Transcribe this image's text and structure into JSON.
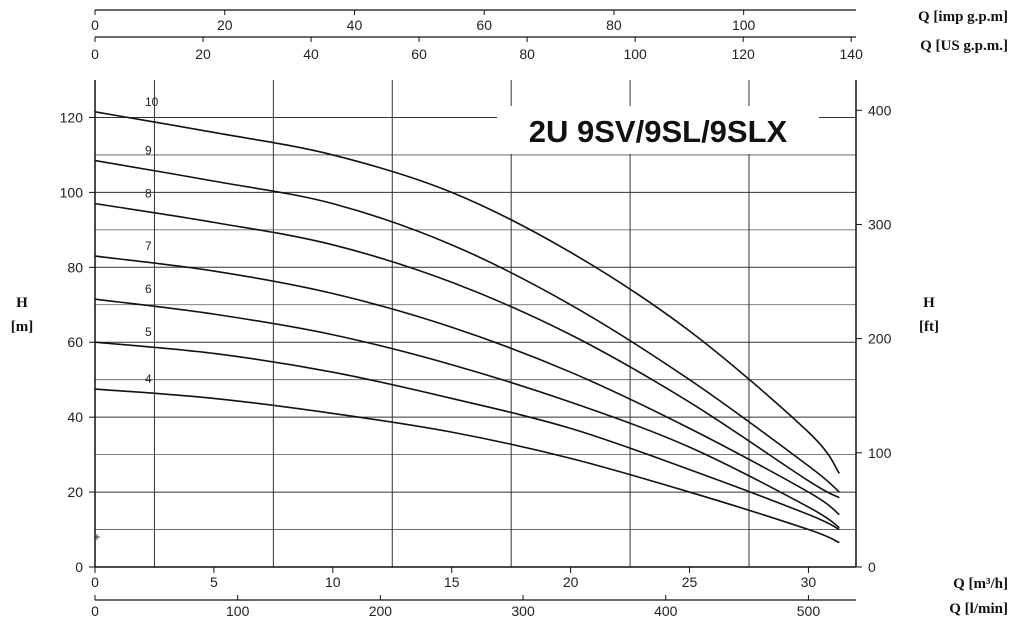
{
  "chart_data": {
    "type": "line",
    "title": "2U 9SV/9SL/9SLX",
    "xlabel": "Q [m³/h]",
    "ylabel": "H [m]",
    "xlim": [
      0,
      32
    ],
    "ylim": [
      0,
      130
    ],
    "x_ticks": [
      0,
      5,
      10,
      15,
      20,
      25,
      30
    ],
    "y_ticks": [
      0,
      20,
      40,
      60,
      80,
      100,
      120
    ],
    "y_minor_grid": [
      10,
      30,
      50,
      70,
      90,
      110
    ],
    "x_grid": [
      2.5,
      7.5,
      12.5,
      17.5,
      22.5,
      27.5
    ],
    "grid": true,
    "secondary_axes": {
      "right": {
        "label_top": "H",
        "label_bottom": "[ft]",
        "ticks": [
          0,
          100,
          200,
          300,
          400
        ]
      },
      "bottom2": {
        "label": "Q [l/min]",
        "ticks": [
          0,
          100,
          200,
          300,
          400,
          500
        ]
      },
      "top1": {
        "label": "Q [imp g.p.m]",
        "ticks": [
          0,
          20,
          40,
          60,
          80,
          100
        ]
      },
      "top2": {
        "label": "Q [US g.p.m.]",
        "ticks": [
          0,
          20,
          40,
          60,
          80,
          100,
          120,
          140
        ]
      }
    },
    "left_label": {
      "top": "H",
      "bottom": "[m]"
    },
    "series": [
      {
        "name": "4",
        "x": [
          0,
          5,
          10,
          15,
          20,
          25,
          30,
          31.3
        ],
        "y": [
          47.5,
          45,
          41,
          36,
          29,
          20,
          10,
          6.5
        ]
      },
      {
        "name": "5",
        "x": [
          0,
          5,
          10,
          15,
          20,
          25,
          30,
          31.3
        ],
        "y": [
          60,
          57,
          52,
          45,
          37,
          26,
          14,
          10
        ]
      },
      {
        "name": "6",
        "x": [
          0,
          5,
          10,
          15,
          20,
          25,
          30,
          31.3
        ],
        "y": [
          71.5,
          67.5,
          62,
          54,
          44,
          32,
          16,
          10.5
        ]
      },
      {
        "name": "7",
        "x": [
          0,
          5,
          10,
          15,
          20,
          25,
          30,
          31.3
        ],
        "y": [
          83,
          79,
          73,
          64,
          52,
          37,
          20,
          14
        ]
      },
      {
        "name": "8",
        "x": [
          0,
          5,
          10,
          15,
          20,
          25,
          30,
          31.3
        ],
        "y": [
          97,
          92,
          86,
          76,
          62,
          44,
          23,
          18.5
        ]
      },
      {
        "name": "9",
        "x": [
          0,
          5,
          10,
          15,
          20,
          25,
          30,
          31.3
        ],
        "y": [
          108.5,
          103,
          97,
          86,
          70,
          50,
          27,
          20
        ]
      },
      {
        "name": "10",
        "x": [
          0,
          5,
          10,
          15,
          20,
          25,
          30,
          31.3
        ],
        "y": [
          121.5,
          116,
          110,
          100,
          84,
          63,
          36,
          25
        ]
      }
    ]
  }
}
